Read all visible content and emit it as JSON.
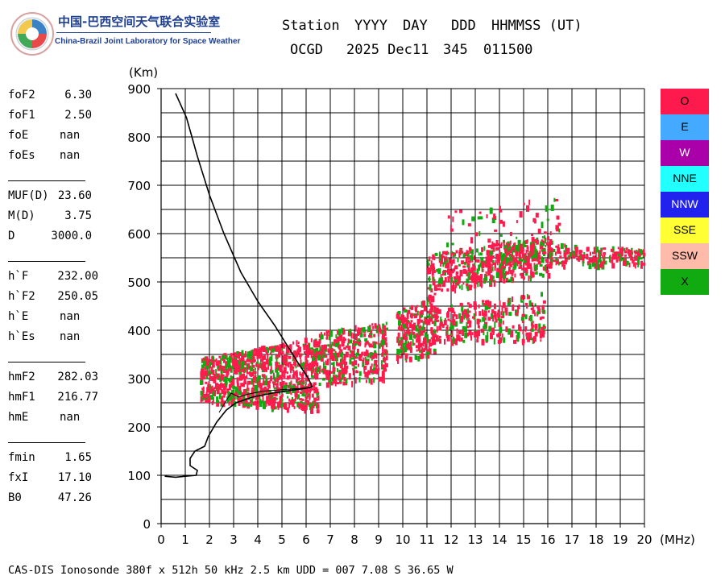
{
  "logo": {
    "title_cn": "中国-巴西空间天气联合实验室",
    "title_en": "China-Brazil Joint Laboratory for Space Weather"
  },
  "header": {
    "labels": [
      "Station",
      "YYYY",
      "DAY",
      "DDD",
      "HHMMSS (UT)"
    ],
    "values": [
      "OCGD",
      "2025 Dec11",
      "345",
      "011500"
    ]
  },
  "parameters": {
    "group1": [
      {
        "name": "foF2",
        "value": "6.30"
      },
      {
        "name": "foF1",
        "value": "2.50"
      },
      {
        "name": "foE",
        "value": "nan"
      },
      {
        "name": "foEs",
        "value": "nan"
      }
    ],
    "group2": [
      {
        "name": "MUF(D)",
        "value": "23.60"
      },
      {
        "name": "M(D)",
        "value": "3.75"
      },
      {
        "name": "D",
        "value": "3000.0"
      }
    ],
    "group3": [
      {
        "name": "h`F",
        "value": "232.00"
      },
      {
        "name": "h`F2",
        "value": "250.05"
      },
      {
        "name": "h`E",
        "value": "nan"
      },
      {
        "name": "h`Es",
        "value": "nan"
      }
    ],
    "group4": [
      {
        "name": "hmF2",
        "value": "282.03"
      },
      {
        "name": "hmF1",
        "value": "216.77"
      },
      {
        "name": "hmE",
        "value": "nan"
      }
    ],
    "group5": [
      {
        "name": "fmin",
        "value": "1.65"
      },
      {
        "name": "fxI",
        "value": "17.10"
      },
      {
        "name": "B0",
        "value": "47.26"
      }
    ]
  },
  "footer": "CAS-DIS Ionosonde 380f x 512h 50 kHz 2.5 km UDD = 007 7.08 S 36.65 W",
  "chart_data": {
    "type": "scatter",
    "xlabel": "(MHz)",
    "ylabel": "(Km)",
    "xlim": [
      0,
      20
    ],
    "ylim": [
      0,
      900
    ],
    "x_ticks": [
      0,
      1,
      2,
      3,
      4,
      5,
      6,
      7,
      8,
      9,
      10,
      11,
      12,
      13,
      14,
      15,
      16,
      17,
      18,
      19,
      20
    ],
    "y_ticks": [
      0,
      100,
      200,
      300,
      400,
      500,
      600,
      700,
      800,
      900
    ],
    "grid": {
      "x_step": 1,
      "y_step": 50
    },
    "legend": [
      {
        "name": "O",
        "color": "#ff1a4d"
      },
      {
        "name": "E",
        "color": "#44aaff"
      },
      {
        "name": "W",
        "color": "#aa00aa"
      },
      {
        "name": "NNE",
        "color": "#22ffff"
      },
      {
        "name": "NNW",
        "color": "#2222ee"
      },
      {
        "name": "SSE",
        "color": "#ffff33"
      },
      {
        "name": "SSW",
        "color": "#ffbbaa"
      },
      {
        "name": "X",
        "color": "#11aa11"
      }
    ],
    "echo_regions": [
      {
        "f": [
          1.6,
          6.5
        ],
        "h_low": [
          255,
          235
        ],
        "h_high": [
          345,
          390
        ],
        "density": 900
      },
      {
        "f": [
          6.5,
          9.3
        ],
        "h_low": [
          290,
          300
        ],
        "h_high": [
          400,
          420
        ],
        "density": 380
      },
      {
        "f": [
          9.7,
          11.3
        ],
        "h_low": [
          340,
          350
        ],
        "h_high": [
          440,
          480
        ],
        "density": 240
      },
      {
        "f": [
          11.2,
          15.8
        ],
        "h_low": [
          380,
          380
        ],
        "h_high": [
          450,
          480
        ],
        "density": 300
      },
      {
        "f": [
          11.0,
          16.2
        ],
        "h_low": [
          480,
          520
        ],
        "h_high": [
          560,
          600
        ],
        "density": 450
      },
      {
        "f": [
          13.5,
          20.0
        ],
        "h_low": [
          530,
          540
        ],
        "h_high": [
          590,
          570
        ],
        "density": 320
      },
      {
        "f": [
          11.8,
          16.8
        ],
        "h_low": [
          580,
          600
        ],
        "h_high": [
          650,
          680
        ],
        "density": 55
      }
    ],
    "profile": {
      "color": "#000000",
      "points": [
        [
          0.15,
          98
        ],
        [
          0.6,
          96
        ],
        [
          1.0,
          98
        ],
        [
          1.45,
          100
        ],
        [
          1.5,
          110
        ],
        [
          1.2,
          120
        ],
        [
          1.2,
          135
        ],
        [
          1.4,
          150
        ],
        [
          1.8,
          160
        ],
        [
          1.95,
          180
        ],
        [
          2.3,
          210
        ],
        [
          2.7,
          235
        ],
        [
          3.1,
          250
        ],
        [
          3.8,
          262
        ],
        [
          4.6,
          270
        ],
        [
          5.4,
          276
        ],
        [
          6.0,
          280
        ],
        [
          6.25,
          283
        ],
        [
          6.1,
          300
        ],
        [
          5.7,
          330
        ],
        [
          5.2,
          370
        ],
        [
          4.7,
          410
        ],
        [
          4.0,
          460
        ],
        [
          3.3,
          520
        ],
        [
          2.6,
          600
        ],
        [
          2.0,
          680
        ],
        [
          1.5,
          760
        ],
        [
          1.05,
          840
        ],
        [
          0.6,
          890
        ]
      ]
    },
    "profile_inner": {
      "color": "#000000",
      "points": [
        [
          2.4,
          230
        ],
        [
          2.7,
          255
        ],
        [
          2.9,
          270
        ],
        [
          3.2,
          262
        ],
        [
          3.6,
          268
        ],
        [
          4.2,
          274
        ],
        [
          5.0,
          277
        ],
        [
          5.8,
          280
        ],
        [
          6.2,
          282
        ]
      ]
    }
  }
}
